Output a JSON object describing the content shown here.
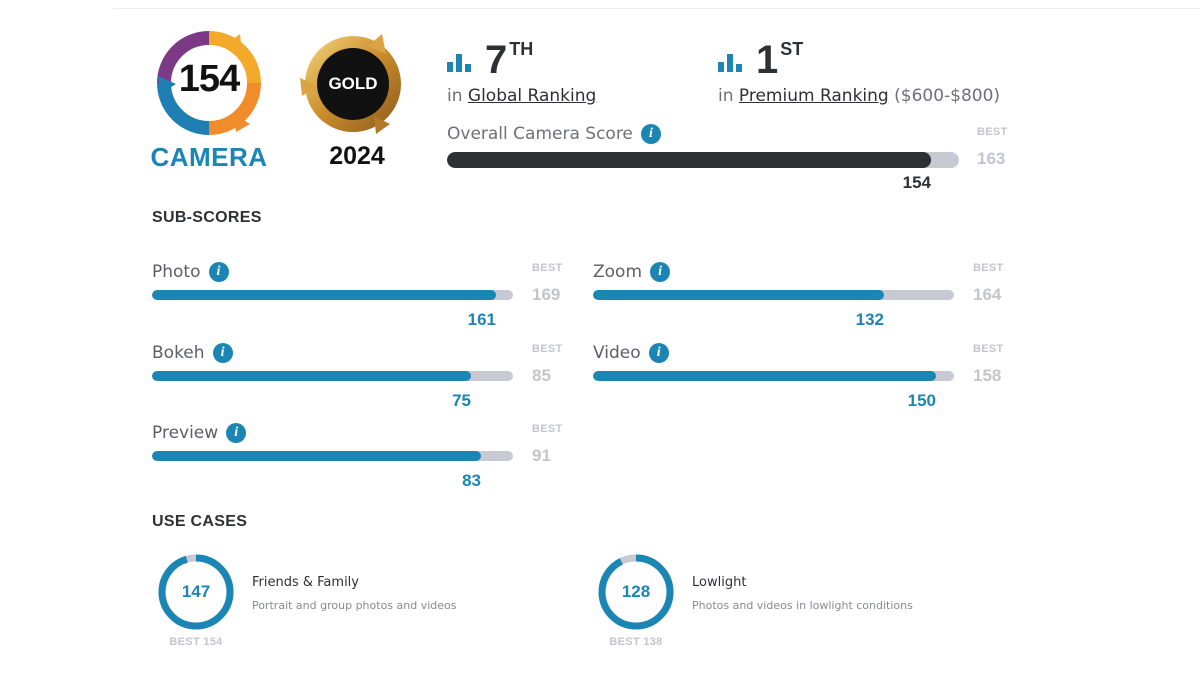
{
  "badge": {
    "score": "154",
    "label": "CAMERA",
    "icon": "dxomark-camera-logo-icon"
  },
  "award": {
    "label": "GOLD",
    "year": "2024",
    "icon": "gold-award-icon"
  },
  "rankings": {
    "global": {
      "number": "7",
      "suffix": "TH",
      "prefix": "in",
      "link": "Global Ranking",
      "extra": ""
    },
    "premium": {
      "number": "1",
      "suffix": "ST",
      "prefix": "in",
      "link": "Premium Ranking",
      "extra": "($600-$800)"
    }
  },
  "overall": {
    "label": "Overall Camera Score",
    "score": 154,
    "best": 163,
    "best_label": "BEST"
  },
  "subscores_title": "SUB-SCORES",
  "subscores": [
    {
      "name": "Photo",
      "score": 161,
      "best": 169
    },
    {
      "name": "Zoom",
      "score": 132,
      "best": 164
    },
    {
      "name": "Bokeh",
      "score": 75,
      "best": 85
    },
    {
      "name": "Video",
      "score": 150,
      "best": 158
    },
    {
      "name": "Preview",
      "score": 83,
      "best": 91
    }
  ],
  "best_label": "BEST",
  "usecases_title": "USE CASES",
  "usecases": [
    {
      "score": 147,
      "best": 154,
      "best_text": "BEST 154",
      "title": "Friends & Family",
      "desc": "Portrait and group photos and videos"
    },
    {
      "score": 128,
      "best": 138,
      "best_text": "BEST 138",
      "title": "Lowlight",
      "desc": "Photos and videos in lowlight conditions"
    }
  ],
  "colors": {
    "accent": "#1b86b4",
    "dark": "#2f3036",
    "track": "#c8c9d3",
    "muted": "#c4c5cc"
  }
}
